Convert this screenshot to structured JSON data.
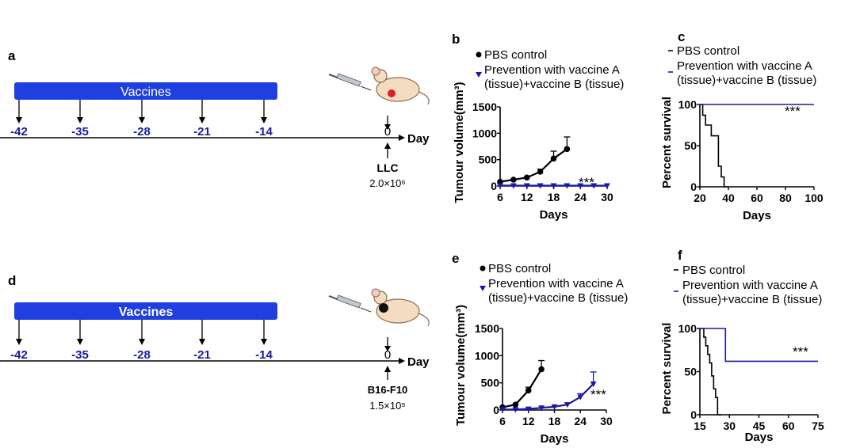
{
  "panels": {
    "a": "a",
    "b": "b",
    "c": "c",
    "d": "d",
    "e": "e",
    "f": "f"
  },
  "timeline_top": {
    "bar_label": "Vaccines",
    "days": [
      "-42",
      "-35",
      "-28",
      "-21",
      "-14"
    ],
    "zero": "0",
    "axis_label": "Day",
    "cell": "LLC",
    "dose": "2.0×10⁶"
  },
  "timeline_bottom": {
    "bar_label": "Vaccines",
    "days": [
      "-42",
      "-35",
      "-28",
      "-21",
      "-14"
    ],
    "zero": "0",
    "axis_label": "Day",
    "cell": "B16-F10",
    "dose": "1.5×10⁵"
  },
  "colors": {
    "control": "#000000",
    "vaccine": "#1a1aa6",
    "bar": "#1f3fe0"
  },
  "chart_data": [
    {
      "id": "b",
      "type": "line",
      "xlabel": "Days",
      "ylabel": "Tumour volume(mm³)",
      "xlim": [
        6,
        30
      ],
      "ylim": [
        0,
        1500
      ],
      "xticks": [
        "6",
        "12",
        "18",
        "24",
        "30"
      ],
      "yticks": [
        "0",
        "500",
        "1000",
        "1500"
      ],
      "legend": [
        "PBS control",
        "Prevention with vaccine A",
        "(tissue)+vaccine B (tissue)"
      ],
      "annotation": "***",
      "series": [
        {
          "name": "PBS control",
          "x": [
            6,
            9,
            12,
            15,
            18,
            21
          ],
          "y": [
            80,
            120,
            160,
            270,
            520,
            700
          ],
          "err": [
            0,
            0,
            0,
            50,
            140,
            230
          ]
        },
        {
          "name": "Prevention with vaccine A (tissue)+vaccine B (tissue)",
          "x": [
            6,
            9,
            12,
            15,
            18,
            21,
            24,
            27,
            30
          ],
          "y": [
            10,
            8,
            8,
            8,
            8,
            8,
            8,
            8,
            8
          ],
          "err": [
            0,
            0,
            0,
            0,
            0,
            0,
            0,
            0,
            0
          ]
        }
      ]
    },
    {
      "id": "c",
      "type": "line",
      "xlabel": "Days",
      "ylabel": "Percent survival",
      "xlim": [
        20,
        100
      ],
      "ylim": [
        0,
        100
      ],
      "xticks": [
        "20",
        "40",
        "60",
        "80",
        "100"
      ],
      "yticks": [
        "0",
        "50",
        "100"
      ],
      "legend": [
        "PBS control",
        "Prevention with vaccine A",
        "(tissue)+vaccine B (tissue)"
      ],
      "annotation": "***",
      "series": [
        {
          "name": "PBS control",
          "x": [
            20,
            22,
            22,
            24,
            24,
            28,
            28,
            33,
            33,
            35,
            35,
            37,
            37,
            40
          ],
          "y": [
            100,
            100,
            87,
            87,
            75,
            75,
            62,
            62,
            25,
            25,
            12,
            12,
            0,
            0
          ]
        },
        {
          "name": "Prevention with vaccine A (tissue)+vaccine B (tissue)",
          "x": [
            20,
            100
          ],
          "y": [
            100,
            100
          ]
        }
      ]
    },
    {
      "id": "e",
      "type": "line",
      "xlabel": "Days",
      "ylabel": "Tumour volume(mm³)",
      "xlim": [
        6,
        30
      ],
      "ylim": [
        0,
        1500
      ],
      "xticks": [
        "6",
        "12",
        "18",
        "24",
        "30"
      ],
      "yticks": [
        "0",
        "500",
        "1000",
        "1500"
      ],
      "legend": [
        "PBS control",
        "Prevention with vaccine A",
        "(tissue)+vaccine B (tissue)"
      ],
      "annotation": "***",
      "series": [
        {
          "name": "PBS control",
          "x": [
            6,
            9,
            12,
            15
          ],
          "y": [
            50,
            100,
            360,
            750
          ],
          "err": [
            0,
            0,
            60,
            160
          ]
        },
        {
          "name": "Prevention with vaccine A (tissue)+vaccine B (tissue)",
          "x": [
            6,
            9,
            12,
            15,
            18,
            21,
            24,
            27
          ],
          "y": [
            10,
            10,
            20,
            40,
            60,
            100,
            240,
            480
          ],
          "err": [
            0,
            0,
            0,
            0,
            0,
            0,
            60,
            220
          ]
        }
      ]
    },
    {
      "id": "f",
      "type": "line",
      "xlabel": "Days",
      "ylabel": "Percent survival",
      "xlim": [
        15,
        75
      ],
      "ylim": [
        0,
        100
      ],
      "xticks": [
        "15",
        "30",
        "45",
        "60",
        "75"
      ],
      "yticks": [
        "0",
        "50",
        "100"
      ],
      "legend": [
        "PBS control",
        "Prevention with vaccine A",
        "(tissue)+vaccine B (tissue)"
      ],
      "annotation": "***",
      "series": [
        {
          "name": "PBS control",
          "x": [
            15,
            17,
            17,
            18,
            18,
            19,
            19,
            20,
            20,
            21,
            21,
            22,
            22,
            23,
            23,
            24,
            24,
            26
          ],
          "y": [
            100,
            100,
            90,
            90,
            80,
            80,
            70,
            70,
            60,
            60,
            45,
            45,
            30,
            30,
            20,
            20,
            0,
            0
          ]
        },
        {
          "name": "Prevention with vaccine A (tissue)+vaccine B (tissue)",
          "x": [
            15,
            28,
            28,
            75
          ],
          "y": [
            100,
            100,
            62,
            62
          ]
        }
      ]
    }
  ]
}
